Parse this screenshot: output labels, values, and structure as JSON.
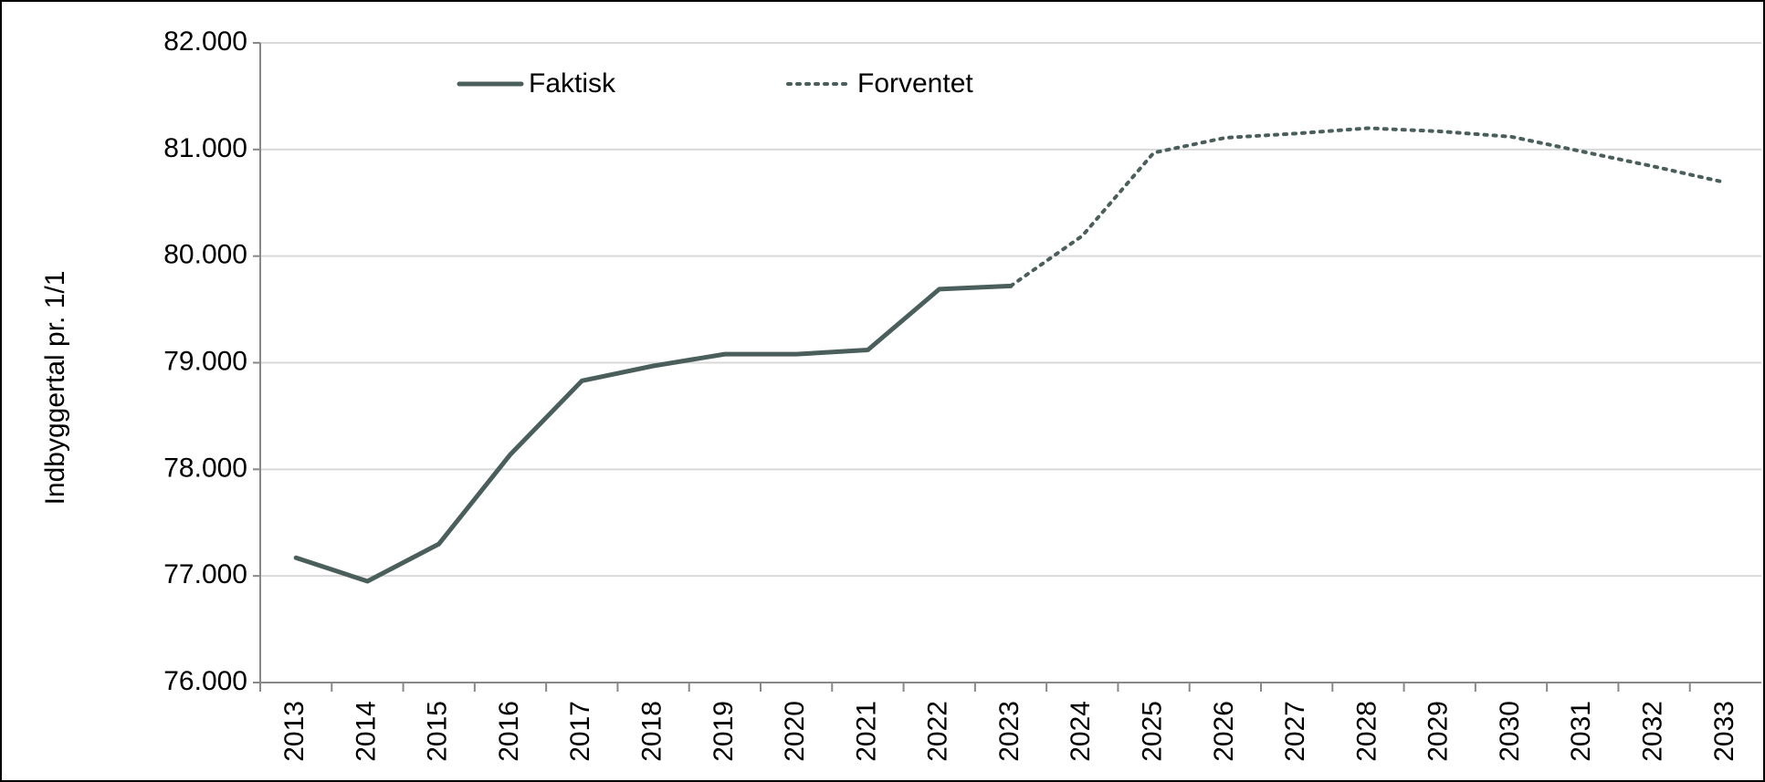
{
  "chart_data": {
    "type": "line",
    "ylabel": "Indbyggertal pr. 1/1",
    "categories": [
      "2013",
      "2014",
      "2015",
      "2016",
      "2017",
      "2018",
      "2019",
      "2020",
      "2021",
      "2022",
      "2023",
      "2024",
      "2025",
      "2026",
      "2027",
      "2028",
      "2029",
      "2030",
      "2031",
      "2032",
      "2033"
    ],
    "series": [
      {
        "name": "Faktisk",
        "color": "#4a5f5c",
        "dash": "solid",
        "values": [
          77170,
          76950,
          77300,
          78140,
          78830,
          78970,
          79080,
          79080,
          79120,
          79690,
          79720,
          null,
          null,
          null,
          null,
          null,
          null,
          null,
          null,
          null,
          null
        ]
      },
      {
        "name": "Forventet",
        "color": "#4a5f5c",
        "dash": "dotted",
        "values": [
          null,
          null,
          null,
          null,
          null,
          null,
          null,
          null,
          null,
          null,
          79720,
          80190,
          80970,
          81110,
          81150,
          81200,
          81170,
          81120,
          80980,
          80840,
          80690
        ]
      }
    ],
    "ylim": [
      76000,
      82000
    ],
    "yticks": [
      {
        "value": 76000,
        "label": "76.000"
      },
      {
        "value": 77000,
        "label": "77.000"
      },
      {
        "value": 78000,
        "label": "78.000"
      },
      {
        "value": 79000,
        "label": "79.000"
      },
      {
        "value": 80000,
        "label": "80.000"
      },
      {
        "value": 81000,
        "label": "81.000"
      },
      {
        "value": 82000,
        "label": "82.000"
      }
    ],
    "grid": true
  }
}
